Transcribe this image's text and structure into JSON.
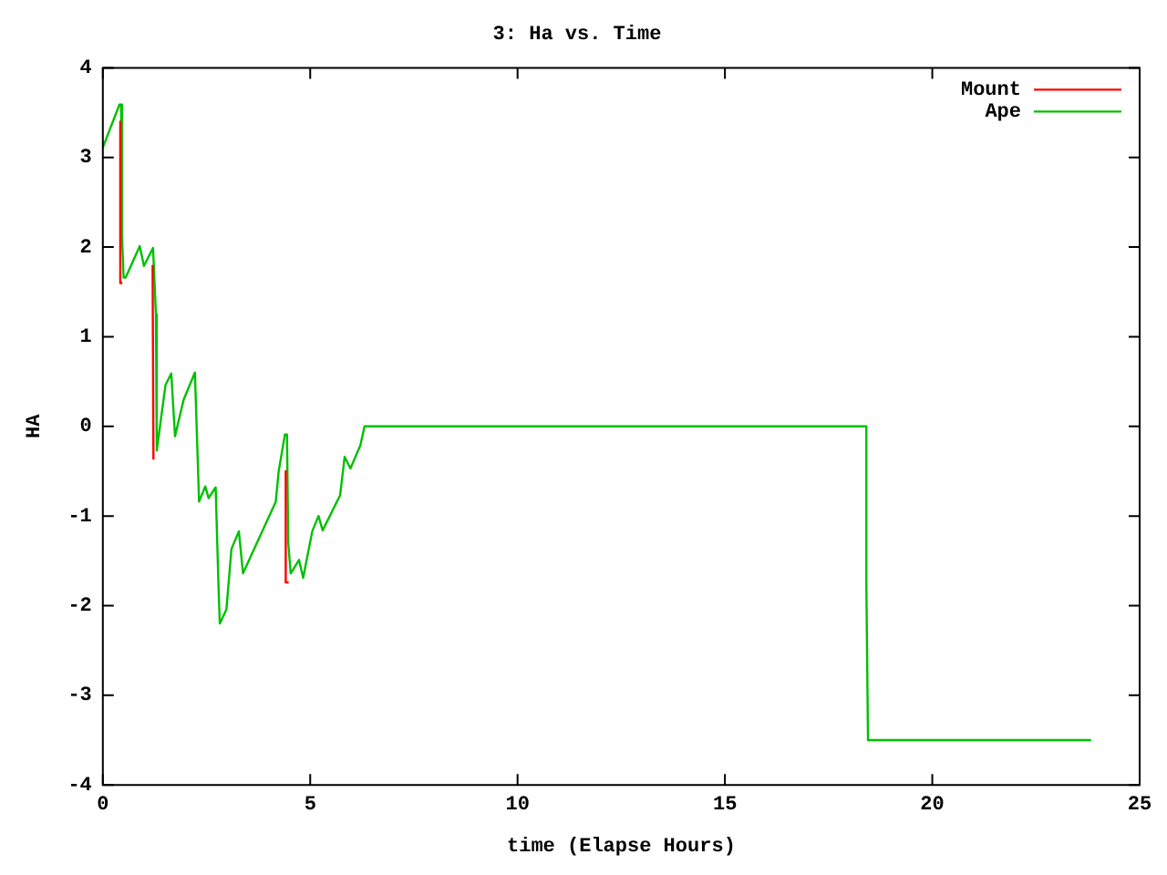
{
  "chart_data": {
    "type": "line",
    "title": "3: Ha vs. Time",
    "xlabel": "time (Elapse Hours)",
    "ylabel": "HA",
    "xlim": [
      0,
      25
    ],
    "xticks": [
      0,
      5,
      10,
      15,
      20,
      25
    ],
    "ylim": [
      -4,
      4
    ],
    "yticks": [
      -4,
      -3,
      -2,
      -1,
      0,
      1,
      2,
      3,
      4
    ],
    "grid": false,
    "legend": "top right",
    "marker": "none",
    "line_style": "solid",
    "series": [
      {
        "name": "Mount",
        "color": "#ff0000",
        "x": [
          0.42,
          0.42,
          0.47,
          0.8,
          1.2,
          1.22,
          1.25,
          3,
          4.41,
          4.41,
          4.48
        ],
        "values": [
          3.4,
          1.6,
          1.6,
          null,
          1.8,
          -0.37,
          -0.37,
          null,
          -0.5,
          -1.74,
          -1.74
        ]
      },
      {
        "name": "Ape",
        "color": "#00c000",
        "x": [
          0,
          0.4,
          0.44,
          0.46,
          0.5,
          0.55,
          0.89,
          0.99,
          1.21,
          1.28,
          1.3,
          1.51,
          1.65,
          1.74,
          1.95,
          2.22,
          2.32,
          2.47,
          2.55,
          2.72,
          2.79,
          2.82,
          2.98,
          3.1,
          3.28,
          3.38,
          4.17,
          4.24,
          4.39,
          4.44,
          4.47,
          4.53,
          4.73,
          4.83,
          5.05,
          5.2,
          5.3,
          5.72,
          5.83,
          5.97,
          6.21,
          6.31,
          18.41,
          18.41,
          18.45,
          23.83
        ],
        "values": [
          3.11,
          3.59,
          3.59,
          2.16,
          1.66,
          1.66,
          2.01,
          1.79,
          1.99,
          1.25,
          -0.27,
          0.46,
          0.59,
          -0.11,
          0.3,
          0.6,
          -0.84,
          -0.67,
          -0.8,
          -0.68,
          -1.8,
          -2.2,
          -2.04,
          -1.37,
          -1.17,
          -1.64,
          -0.84,
          -0.5,
          -0.09,
          -0.09,
          -1.3,
          -1.64,
          -1.49,
          -1.69,
          -1.17,
          -1.0,
          -1.16,
          -0.77,
          -0.34,
          -0.47,
          -0.21,
          0,
          0,
          -1.76,
          -3.5,
          -3.5
        ]
      }
    ]
  }
}
